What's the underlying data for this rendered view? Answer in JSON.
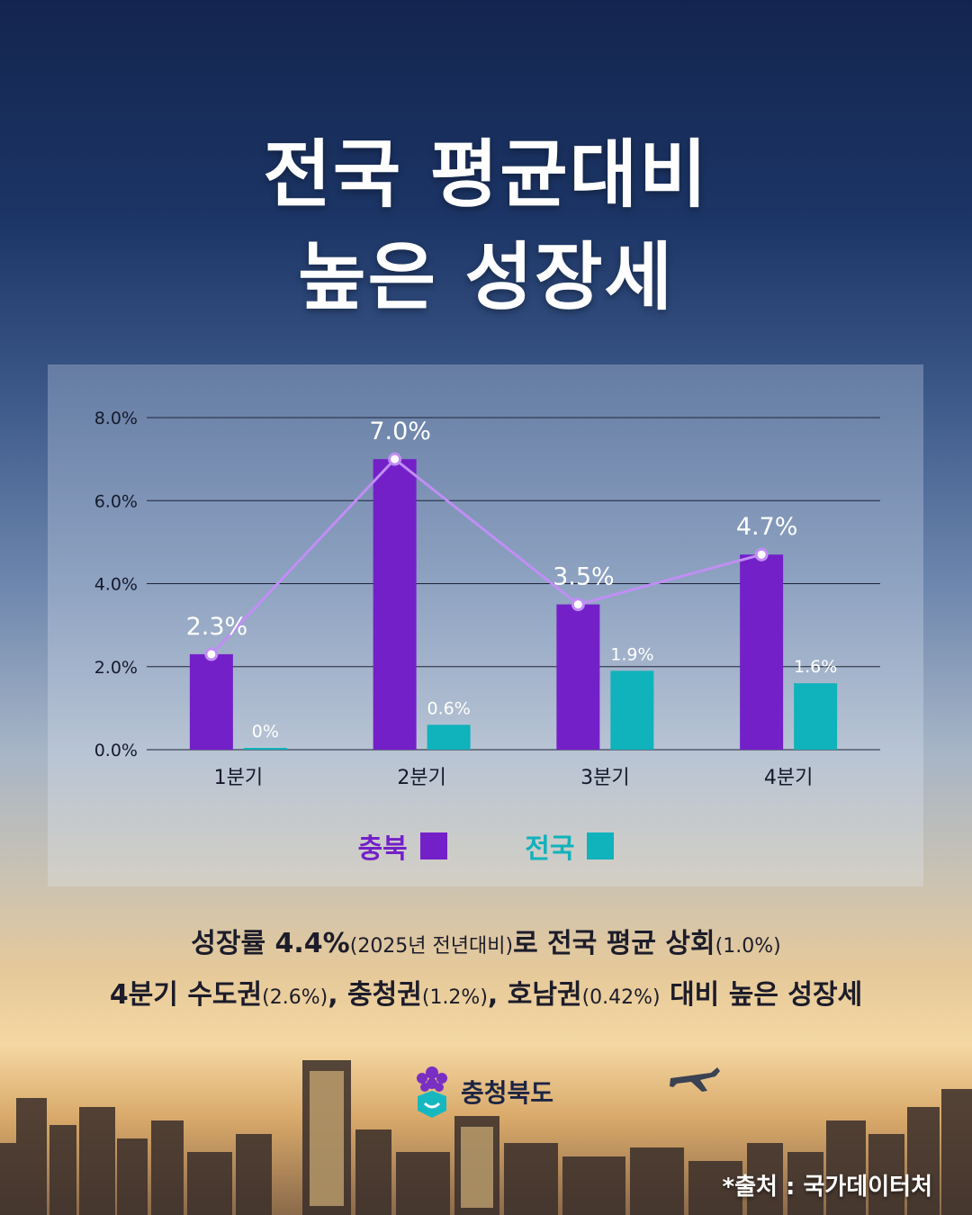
{
  "title": {
    "line1": "전국 평균대비",
    "line2": "높은 성장세"
  },
  "chart_data": {
    "type": "bar",
    "categories": [
      "1분기",
      "2분기",
      "3분기",
      "4분기"
    ],
    "series": [
      {
        "name": "충북",
        "values": [
          2.3,
          7.0,
          3.5,
          4.7
        ],
        "labels": [
          "2.3%",
          "7.0%",
          "3.5%",
          "4.7%"
        ],
        "color": "#7420c8",
        "line_color": "#c08ef5",
        "overlay_line": true
      },
      {
        "name": "전국",
        "values": [
          0.0,
          0.6,
          1.9,
          1.6
        ],
        "labels": [
          "0%",
          "0.6%",
          "1.9%",
          "1.6%"
        ],
        "color": "#10b2bb"
      }
    ],
    "y_ticks": [
      "0.0%",
      "2.0%",
      "4.0%",
      "6.0%",
      "8.0%"
    ],
    "ylim": [
      0,
      8
    ],
    "grid": true,
    "legend": "bottom-center"
  },
  "caption": {
    "line1": {
      "a": "성장률 4.4%",
      "b": "(2025년 전년대비)",
      "c": "로 전국 평균 상회",
      "d": "(1.0%)"
    },
    "line2": {
      "a": "4분기 수도권",
      "b": "(2.6%)",
      "c": ", 충청권",
      "d": "(1.2%)",
      "e": ", 호남권",
      "f": "(0.42%)",
      "g": " 대비 높은 성장세"
    }
  },
  "logo_text": "충청북도",
  "source": "*출처 : 국가데이터처"
}
